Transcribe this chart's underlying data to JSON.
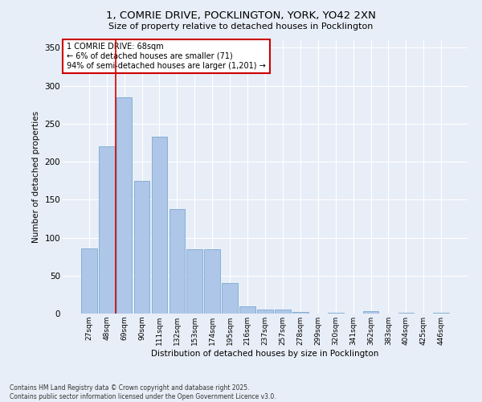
{
  "title_line1": "1, COMRIE DRIVE, POCKLINGTON, YORK, YO42 2XN",
  "title_line2": "Size of property relative to detached houses in Pocklington",
  "xlabel": "Distribution of detached houses by size in Pocklington",
  "ylabel": "Number of detached properties",
  "categories": [
    "27sqm",
    "48sqm",
    "69sqm",
    "90sqm",
    "111sqm",
    "132sqm",
    "153sqm",
    "174sqm",
    "195sqm",
    "216sqm",
    "237sqm",
    "257sqm",
    "278sqm",
    "299sqm",
    "320sqm",
    "341sqm",
    "362sqm",
    "383sqm",
    "404sqm",
    "425sqm",
    "446sqm"
  ],
  "values": [
    86,
    220,
    285,
    175,
    233,
    138,
    85,
    85,
    40,
    10,
    5,
    5,
    2,
    0,
    1,
    0,
    3,
    0,
    1,
    0,
    1
  ],
  "bar_color": "#aec6e8",
  "bar_edgecolor": "#7aaad0",
  "vline_color": "#cc0000",
  "annotation_text": "1 COMRIE DRIVE: 68sqm\n← 6% of detached houses are smaller (71)\n94% of semi-detached houses are larger (1,201) →",
  "annotation_box_color": "#ffffff",
  "annotation_box_edgecolor": "#cc0000",
  "ylim": [
    0,
    360
  ],
  "yticks": [
    0,
    50,
    100,
    150,
    200,
    250,
    300,
    350
  ],
  "background_color": "#e8eef7",
  "grid_color": "#ffffff",
  "footer_line1": "Contains HM Land Registry data © Crown copyright and database right 2025.",
  "footer_line2": "Contains public sector information licensed under the Open Government Licence v3.0."
}
